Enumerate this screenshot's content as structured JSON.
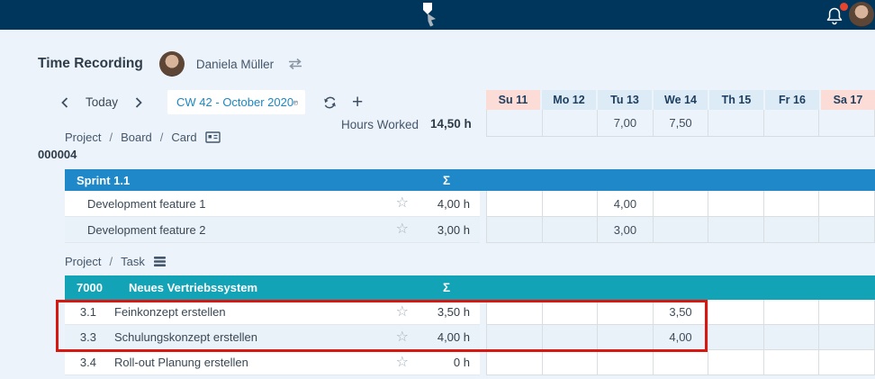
{
  "header": {
    "title": "Time Recording",
    "user_name": "Daniela Müller"
  },
  "toolbar": {
    "today_label": "Today",
    "week_label": "CW 42 - October 2020"
  },
  "summary": {
    "hours_worked_label": "Hours Worked",
    "hours_worked_value": "14,50 h"
  },
  "week": {
    "days": [
      {
        "label": "Su 11",
        "weekend": true
      },
      {
        "label": "Mo 12",
        "weekend": false
      },
      {
        "label": "Tu 13",
        "weekend": false
      },
      {
        "label": "We 14",
        "weekend": false
      },
      {
        "label": "Th 15",
        "weekend": false
      },
      {
        "label": "Fr 16",
        "weekend": false
      },
      {
        "label": "Sa 17",
        "weekend": true
      }
    ],
    "day_totals": [
      "",
      "",
      "7,00",
      "7,50",
      "",
      "",
      ""
    ]
  },
  "breadcrumb_board": {
    "item1": "Project",
    "item2": "Board",
    "item3": "Card",
    "separator": "/"
  },
  "breadcrumb_task": {
    "item1": "Project",
    "item2": "Task",
    "separator": "/"
  },
  "board_id": "000004",
  "tables": [
    {
      "kind": "board",
      "header": {
        "code": "",
        "title": "Sprint 1.1",
        "sum_symbol": "Σ"
      },
      "rows": [
        {
          "number": "",
          "title": "Development feature 1",
          "sum": "4,00 h",
          "cells": [
            "",
            "",
            "4,00",
            "",
            "",
            "",
            ""
          ]
        },
        {
          "number": "",
          "title": "Development feature 2",
          "sum": "3,00 h",
          "cells": [
            "",
            "",
            "3,00",
            "",
            "",
            "",
            ""
          ]
        }
      ]
    },
    {
      "kind": "task",
      "header": {
        "code": "7000",
        "title": "Neues Vertriebssystem",
        "sum_symbol": "Σ"
      },
      "rows": [
        {
          "number": "3.1",
          "title": "Feinkonzept erstellen",
          "sum": "3,50 h",
          "cells": [
            "",
            "",
            "",
            "3,50",
            "",
            "",
            ""
          ]
        },
        {
          "number": "3.3",
          "title": "Schulungskonzept erstellen",
          "sum": "4,00 h",
          "cells": [
            "",
            "",
            "",
            "4,00",
            "",
            "",
            ""
          ]
        },
        {
          "number": "3.4",
          "title": "Roll-out Planung erstellen",
          "sum": "0 h",
          "cells": [
            "",
            "",
            "",
            "",
            "",
            "",
            ""
          ]
        }
      ]
    }
  ],
  "icons": {
    "star": "☆",
    "plus": "+"
  },
  "colors": {
    "topbar": "#00365c",
    "page_bg": "#edf3fa",
    "board_header": "#1e88c8",
    "task_header": "#13a3b7",
    "weekend_bg": "#fbdcd6",
    "weekday_bg": "#dcebf5",
    "alt_row_bg": "#eaf2f9",
    "grid_border": "#d9dee3",
    "highlight_red": "#d81710",
    "week_label_blue": "#1d87c0",
    "badge_red": "#e8432d"
  }
}
